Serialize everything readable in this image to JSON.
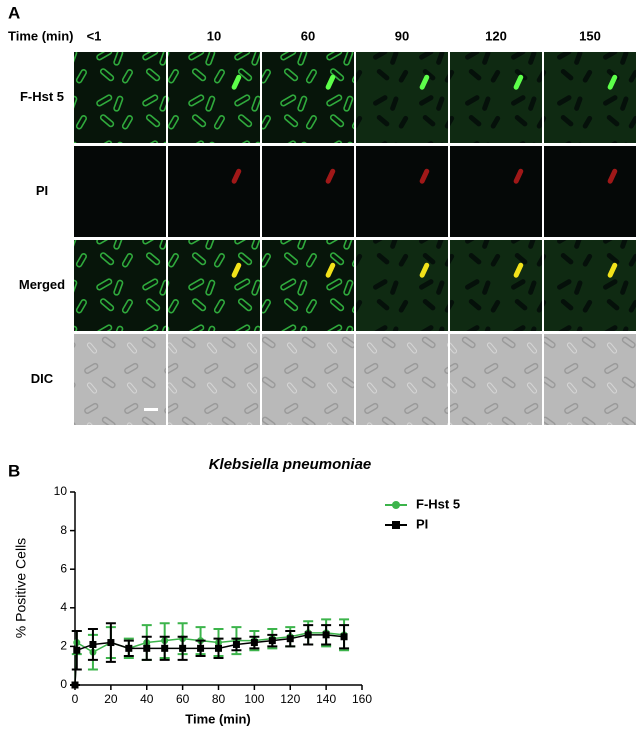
{
  "panel_a": {
    "label": "A",
    "time_label": "Time (min)",
    "columns": [
      "<1",
      "10",
      "60",
      "90",
      "120",
      "150"
    ],
    "rows": [
      "F-Hst 5",
      "PI",
      "Merged",
      "DIC"
    ]
  },
  "panel_b_label": "B",
  "chart_data": {
    "type": "line",
    "title": "Klebsiella pneumoniae",
    "x_label": "Time (min)",
    "y_label": "% Positive Cells",
    "x": [
      0,
      1,
      10,
      20,
      30,
      40,
      50,
      60,
      70,
      80,
      90,
      100,
      110,
      120,
      130,
      140,
      150
    ],
    "series": [
      {
        "name": "F-Hst 5",
        "color": "#3cb44b",
        "marker": "circle",
        "values": [
          0,
          2.2,
          1.7,
          2.2,
          1.9,
          2.2,
          2.3,
          2.4,
          2.3,
          2.2,
          2.3,
          2.3,
          2.4,
          2.5,
          2.7,
          2.7,
          2.6
        ],
        "errors": [
          0,
          0.6,
          0.9,
          0.8,
          0.5,
          0.9,
          0.9,
          0.8,
          0.7,
          0.7,
          0.7,
          0.5,
          0.5,
          0.5,
          0.6,
          0.7,
          0.8
        ]
      },
      {
        "name": "PI",
        "color": "#000000",
        "marker": "square",
        "values": [
          0,
          1.8,
          2.1,
          2.2,
          1.9,
          1.9,
          1.9,
          1.9,
          1.9,
          1.9,
          2.1,
          2.2,
          2.3,
          2.4,
          2.6,
          2.6,
          2.5
        ],
        "errors": [
          0,
          1.0,
          0.8,
          1.0,
          0.4,
          0.6,
          0.6,
          0.6,
          0.4,
          0.5,
          0.3,
          0.3,
          0.3,
          0.4,
          0.5,
          0.5,
          0.6
        ]
      }
    ],
    "xlim": [
      0,
      160
    ],
    "xticks": [
      0,
      20,
      40,
      60,
      80,
      100,
      120,
      140,
      160
    ],
    "ylim": [
      0,
      10
    ],
    "yticks": [
      0,
      2,
      4,
      6,
      8,
      10
    ]
  }
}
